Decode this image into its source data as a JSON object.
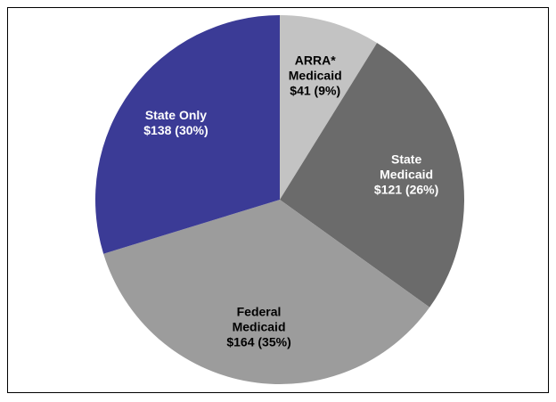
{
  "chart_data": {
    "type": "pie",
    "categories": [
      "ARRA*\nMedicaid",
      "State\nMedicaid",
      "Federal\nMedicaid",
      "State Only"
    ],
    "values": [
      41,
      121,
      164,
      138
    ],
    "value_labels": [
      "$41 (9%)",
      "$121 (26%)",
      "$164 (35%)",
      "$138 (30%)"
    ],
    "colors": [
      "#c3c3c3",
      "#6b6b6b",
      "#9c9c9c",
      "#3b3b96"
    ],
    "label_colors": [
      "#000000",
      "#ffffff",
      "#000000",
      "#ffffff"
    ]
  }
}
